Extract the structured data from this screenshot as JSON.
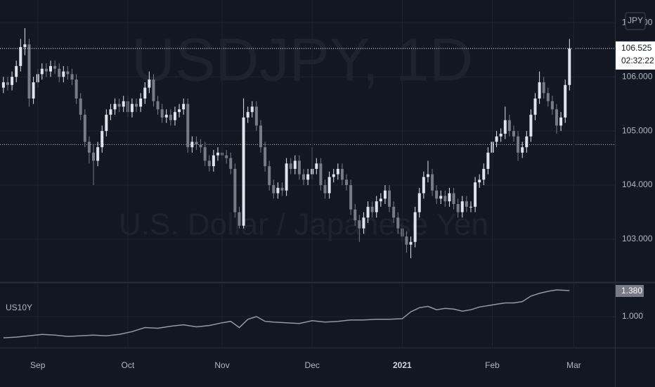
{
  "chart_data": [
    {
      "type": "candlestick",
      "symbol_watermark": "USDJPY, 1D",
      "description_watermark": "U.S. Dollar / Japanese Yen",
      "currency_button": "JPY",
      "last_price_label": "106.525",
      "countdown": "02:32:22",
      "horizontal_line": 104.75,
      "up_color": "#e0e3eb",
      "down_color": "#787b86",
      "xlim": [
        -0.8,
        142.6
      ],
      "ylim": [
        102.22,
        107.42
      ],
      "yticks": [
        {
          "value": 103,
          "label": "103.000"
        },
        {
          "value": 104,
          "label": "104.000"
        },
        {
          "value": 105,
          "label": "105.000"
        },
        {
          "value": 106,
          "label": "106.000"
        },
        {
          "value": 107,
          "label": "107.000"
        }
      ],
      "grid": true,
      "open": [
        105.8,
        105.9,
        105.85,
        106.0,
        106.2,
        106.55,
        106.6,
        105.6,
        105.9,
        106.05,
        106.15,
        106.1,
        106.2,
        106.15,
        106.0,
        106.1,
        106.05,
        105.95,
        105.6,
        105.3,
        104.8,
        104.6,
        104.45,
        104.7,
        105.0,
        105.3,
        105.4,
        105.5,
        105.45,
        105.55,
        105.35,
        105.5,
        105.45,
        105.6,
        105.8,
        105.95,
        105.55,
        105.4,
        105.25,
        105.3,
        105.2,
        105.35,
        105.4,
        105.5,
        104.7,
        104.8,
        104.75,
        104.7,
        104.45,
        104.35,
        104.55,
        104.6,
        104.55,
        104.5,
        104.3,
        103.5,
        103.25,
        105.25,
        105.35,
        105.45,
        105.1,
        104.7,
        104.35,
        104.0,
        103.85,
        103.95,
        103.9,
        104.4,
        104.3,
        104.45,
        104.2,
        104.1,
        104.2,
        104.3,
        104.4,
        104.0,
        103.85,
        104.15,
        104.2,
        104.3,
        104.1,
        104.0,
        103.55,
        103.35,
        103.2,
        103.4,
        103.6,
        103.5,
        103.7,
        103.75,
        103.9,
        103.6,
        103.4,
        103.2,
        103.05,
        102.9,
        102.95,
        103.5,
        103.85,
        104.15,
        104.2,
        103.9,
        103.75,
        103.8,
        103.7,
        103.85,
        103.65,
        103.5,
        103.7,
        103.6,
        103.6,
        104.05,
        104.1,
        104.3,
        104.6,
        104.8,
        104.9,
        104.95,
        105.2,
        105.0,
        104.9,
        104.6,
        104.7,
        104.9,
        105.3,
        105.6,
        105.9,
        105.7,
        105.55,
        105.4,
        105.1,
        105.25,
        105.85
      ],
      "high": [
        106.0,
        106.0,
        106.1,
        106.3,
        106.7,
        106.9,
        106.7,
        106.0,
        106.15,
        106.25,
        106.25,
        106.3,
        106.3,
        106.25,
        106.2,
        106.2,
        106.15,
        106.05,
        105.7,
        105.4,
        104.9,
        104.75,
        104.8,
        105.1,
        105.4,
        105.5,
        105.6,
        105.6,
        105.65,
        105.65,
        105.6,
        105.6,
        105.7,
        105.9,
        106.1,
        106.05,
        105.65,
        105.5,
        105.4,
        105.4,
        105.45,
        105.5,
        105.6,
        105.6,
        104.9,
        104.9,
        104.85,
        104.8,
        104.55,
        104.65,
        104.7,
        104.7,
        104.65,
        104.6,
        104.4,
        103.6,
        105.6,
        105.45,
        105.55,
        105.55,
        105.2,
        104.8,
        104.45,
        104.1,
        104.05,
        104.05,
        104.5,
        104.5,
        104.55,
        104.55,
        104.3,
        104.3,
        104.7,
        104.5,
        104.5,
        104.1,
        104.25,
        104.3,
        104.4,
        104.4,
        104.2,
        104.1,
        103.65,
        103.45,
        103.5,
        103.7,
        103.7,
        103.8,
        103.85,
        104.0,
        104.0,
        103.7,
        103.5,
        103.3,
        103.15,
        103.05,
        103.6,
        103.95,
        104.25,
        104.45,
        104.3,
        104.0,
        103.9,
        103.9,
        103.95,
        103.95,
        103.75,
        103.8,
        103.8,
        103.7,
        104.15,
        104.2,
        104.4,
        104.7,
        104.9,
        105.0,
        105.05,
        105.45,
        105.3,
        105.1,
        105.0,
        104.8,
        105.0,
        105.4,
        105.7,
        106.1,
        106.0,
        105.8,
        105.65,
        105.5,
        105.35,
        105.95,
        106.7
      ],
      "low": [
        105.7,
        105.75,
        105.75,
        105.9,
        106.1,
        106.4,
        105.45,
        105.5,
        105.8,
        105.95,
        106.0,
        106.0,
        106.05,
        105.9,
        105.9,
        105.95,
        105.85,
        105.5,
        105.2,
        104.7,
        104.4,
        104.0,
        104.35,
        104.6,
        104.9,
        105.2,
        105.3,
        105.35,
        105.35,
        105.25,
        105.25,
        105.35,
        105.35,
        105.5,
        105.7,
        105.45,
        105.3,
        105.15,
        105.15,
        105.1,
        105.1,
        105.25,
        105.3,
        104.6,
        104.6,
        104.65,
        104.6,
        104.35,
        104.25,
        104.25,
        104.45,
        104.45,
        104.4,
        104.2,
        103.4,
        103.2,
        103.2,
        105.15,
        105.25,
        105.0,
        104.6,
        104.25,
        103.9,
        103.75,
        103.75,
        103.8,
        103.8,
        104.2,
        104.2,
        104.1,
        104.0,
        104.0,
        104.1,
        104.2,
        103.9,
        103.75,
        103.75,
        104.05,
        104.1,
        104.0,
        103.9,
        103.45,
        103.25,
        102.95,
        103.1,
        103.3,
        103.4,
        103.4,
        103.6,
        103.65,
        103.5,
        103.3,
        103.1,
        102.95,
        102.75,
        102.65,
        102.85,
        103.4,
        103.75,
        104.05,
        103.8,
        103.65,
        103.65,
        103.6,
        103.6,
        103.55,
        103.4,
        103.4,
        103.5,
        103.5,
        103.5,
        103.95,
        104.0,
        104.2,
        104.5,
        104.7,
        104.8,
        104.85,
        104.9,
        104.8,
        104.45,
        104.5,
        104.6,
        104.8,
        105.2,
        105.5,
        105.6,
        105.45,
        105.3,
        104.95,
        105.0,
        105.15,
        105.75
      ],
      "close": [
        105.9,
        105.85,
        106.0,
        106.2,
        106.55,
        106.6,
        105.6,
        105.9,
        106.05,
        106.15,
        106.1,
        106.2,
        106.15,
        106.0,
        106.1,
        106.05,
        105.95,
        105.6,
        105.3,
        104.8,
        104.6,
        104.45,
        104.7,
        105.0,
        105.3,
        105.4,
        105.5,
        105.45,
        105.55,
        105.35,
        105.5,
        105.45,
        105.6,
        105.8,
        105.95,
        105.55,
        105.4,
        105.25,
        105.3,
        105.2,
        105.35,
        105.4,
        105.5,
        104.7,
        104.8,
        104.75,
        104.7,
        104.45,
        104.35,
        104.55,
        104.6,
        104.55,
        104.5,
        104.3,
        103.5,
        103.25,
        105.25,
        105.35,
        105.45,
        105.1,
        104.7,
        104.35,
        104.0,
        103.85,
        103.95,
        103.9,
        104.4,
        104.3,
        104.45,
        104.2,
        104.1,
        104.2,
        104.3,
        104.4,
        104.0,
        103.85,
        104.15,
        104.2,
        104.3,
        104.1,
        104.0,
        103.55,
        103.35,
        103.2,
        103.4,
        103.6,
        103.5,
        103.7,
        103.75,
        103.9,
        103.6,
        103.4,
        103.2,
        103.05,
        102.9,
        102.95,
        103.5,
        103.85,
        104.15,
        104.2,
        103.9,
        103.75,
        103.8,
        103.7,
        103.85,
        103.65,
        103.5,
        103.7,
        103.6,
        103.6,
        104.05,
        104.1,
        104.3,
        104.6,
        104.8,
        104.9,
        104.95,
        105.2,
        105.0,
        104.9,
        104.6,
        104.7,
        104.9,
        105.3,
        105.6,
        105.9,
        105.7,
        105.55,
        105.4,
        105.1,
        105.25,
        105.85,
        106.525
      ]
    },
    {
      "type": "line",
      "series_name": "US10Y",
      "last_label": "1.380",
      "color": "#9598a1",
      "xlim": [
        -0.8,
        142.6
      ],
      "ylim": [
        0.557,
        1.483
      ],
      "yticks": [
        {
          "value": 1,
          "label": "1.000"
        }
      ],
      "xticks": [
        {
          "value": 8,
          "label": "Sep"
        },
        {
          "value": 29,
          "label": "Oct"
        },
        {
          "value": 51,
          "label": "Nov"
        },
        {
          "value": 72,
          "label": "Dec"
        },
        {
          "value": 93,
          "label": "2021"
        },
        {
          "value": 114,
          "label": "Feb"
        },
        {
          "value": 133,
          "label": "Mar"
        }
      ],
      "x": [
        0,
        3,
        6,
        9,
        12,
        15,
        18,
        21,
        24,
        27,
        30,
        33,
        36,
        39,
        42,
        45,
        48,
        51,
        53,
        55,
        57,
        59,
        61,
        63,
        66,
        69,
        72,
        75,
        78,
        81,
        84,
        87,
        90,
        93,
        95,
        97,
        99,
        101,
        103,
        105,
        107,
        109,
        111,
        113,
        115,
        117,
        119,
        121,
        123,
        125,
        127,
        129,
        132
      ],
      "values": [
        0.69,
        0.7,
        0.72,
        0.74,
        0.73,
        0.71,
        0.72,
        0.73,
        0.72,
        0.74,
        0.78,
        0.84,
        0.83,
        0.86,
        0.88,
        0.85,
        0.87,
        0.91,
        0.93,
        0.84,
        0.96,
        1.0,
        0.93,
        0.92,
        0.91,
        0.9,
        0.94,
        0.92,
        0.93,
        0.95,
        0.95,
        0.96,
        0.96,
        0.97,
        1.07,
        1.13,
        1.15,
        1.1,
        1.12,
        1.11,
        1.08,
        1.1,
        1.14,
        1.16,
        1.18,
        1.2,
        1.2,
        1.22,
        1.3,
        1.34,
        1.37,
        1.39,
        1.38
      ]
    }
  ]
}
